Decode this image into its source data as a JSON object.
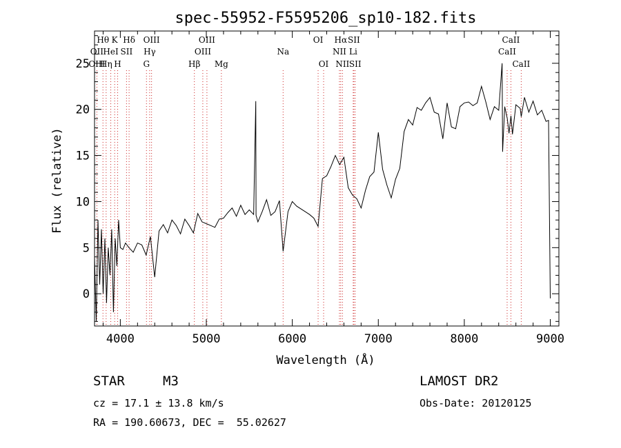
{
  "chart_data": {
    "type": "line",
    "title": "spec-55952-F5595206_sp10-182.fits",
    "xlabel": "Wavelength (Å)",
    "ylabel": "Flux (relative)",
    "xlim": [
      3700,
      9100
    ],
    "ylim": [
      -3.5,
      28.5
    ],
    "xticks": [
      4000,
      5000,
      6000,
      7000,
      8000,
      9000
    ],
    "yticks": [
      0,
      5,
      10,
      15,
      20,
      25
    ],
    "grid": false,
    "series": [
      {
        "x": [
          3700,
          3720,
          3740,
          3760,
          3780,
          3800,
          3820,
          3840,
          3860,
          3880,
          3900,
          3920,
          3940,
          3960,
          3980,
          4000,
          4030,
          4060,
          4100,
          4150,
          4200,
          4250,
          4300,
          4350,
          4400,
          4450,
          4500,
          4550,
          4600,
          4650,
          4700,
          4750,
          4800,
          4850,
          4900,
          4950,
          5000,
          5050,
          5100,
          5150,
          5200,
          5250,
          5300,
          5350,
          5400,
          5450,
          5500,
          5550,
          5575,
          5578,
          5600,
          5650,
          5700,
          5750,
          5800,
          5850,
          5893,
          5950,
          6000,
          6050,
          6100,
          6150,
          6200,
          6250,
          6300,
          6350,
          6400,
          6450,
          6500,
          6550,
          6600,
          6650,
          6700,
          6750,
          6800,
          6850,
          6900,
          6950,
          7000,
          7050,
          7100,
          7150,
          7200,
          7250,
          7300,
          7350,
          7400,
          7450,
          7500,
          7550,
          7600,
          7650,
          7700,
          7750,
          7800,
          7850,
          7900,
          7950,
          8000,
          8050,
          8100,
          8150,
          8200,
          8250,
          8300,
          8350,
          8400,
          8440,
          8445,
          8470,
          8500,
          8520,
          8542,
          8560,
          8600,
          8650,
          8662,
          8700,
          8750,
          8800,
          8850,
          8900,
          8950,
          8980,
          9000
        ],
        "y": [
          4,
          -3,
          8,
          1,
          7,
          0,
          6,
          -1,
          5,
          2,
          7,
          -2,
          6,
          3,
          8,
          5,
          4.8,
          5.5,
          5,
          4.5,
          5.5,
          5.3,
          4.2,
          6.2,
          1.8,
          6.8,
          7.5,
          6.6,
          8,
          7.4,
          6.5,
          8.1,
          7.4,
          6.6,
          8.7,
          7.8,
          7.6,
          7.4,
          7.2,
          8.1,
          8.2,
          8.8,
          9.3,
          8.4,
          9.6,
          8.6,
          9.1,
          8.6,
          20.9,
          8.5,
          7.8,
          8.9,
          10.2,
          8.5,
          8.9,
          10.1,
          4.6,
          8.9,
          10,
          9.5,
          9.2,
          8.9,
          8.6,
          8.2,
          7.3,
          12.5,
          12.8,
          13.8,
          15,
          14,
          14.8,
          11.5,
          10.7,
          10.3,
          9.3,
          11.2,
          12.7,
          13.2,
          17.5,
          13.5,
          11.8,
          10.4,
          12.4,
          13.6,
          17.6,
          18.9,
          18.3,
          20.2,
          19.9,
          20.7,
          21.3,
          19.7,
          19.5,
          16.8,
          20.7,
          18.1,
          17.9,
          20.3,
          20.7,
          20.8,
          20.4,
          20.7,
          22.5,
          20.8,
          18.9,
          20.3,
          19.9,
          25,
          15.4,
          20.3,
          19,
          17.4,
          19.3,
          17.3,
          20.5,
          20.1,
          19.2,
          21.3,
          19.7,
          20.9,
          19.4,
          19.9,
          18.7,
          18.8,
          -0.5
        ]
      }
    ],
    "annotations": {
      "line_labels": [
        {
          "name": "Hθ",
          "wave": 3798,
          "row": 1
        },
        {
          "name": "K",
          "wave": 3934,
          "row": 1
        },
        {
          "name": "Hδ",
          "wave": 4102,
          "row": 1
        },
        {
          "name": "OII",
          "wave": 3727,
          "row": 2
        },
        {
          "name": "HeI",
          "wave": 3889,
          "row": 2
        },
        {
          "name": "SII",
          "wave": 4072,
          "row": 2
        },
        {
          "name": "OIII",
          "wave": 3727,
          "row": 3
        },
        {
          "name": "Hη",
          "wave": 3835,
          "row": 3
        },
        {
          "name": "H",
          "wave": 3969,
          "row": 3
        },
        {
          "name": "OIII",
          "wave": 4363,
          "row": 1
        },
        {
          "name": "Hγ",
          "wave": 4341,
          "row": 2
        },
        {
          "name": "G",
          "wave": 4304,
          "row": 3
        },
        {
          "name": "OIII",
          "wave": 5007,
          "row": 1
        },
        {
          "name": "OIII",
          "wave": 4959,
          "row": 2
        },
        {
          "name": "Hβ",
          "wave": 4861,
          "row": 3
        },
        {
          "name": "Mg",
          "wave": 5175,
          "row": 3
        },
        {
          "name": "Na",
          "wave": 5893,
          "row": 2
        },
        {
          "name": "OI",
          "wave": 6300,
          "row": 1
        },
        {
          "name": "OI",
          "wave": 6364,
          "row": 3
        },
        {
          "name": "Hα",
          "wave": 6563,
          "row": 1
        },
        {
          "name": "SII",
          "wave": 6716,
          "row": 1
        },
        {
          "name": "NII",
          "wave": 6548,
          "row": 2
        },
        {
          "name": "Li",
          "wave": 6708,
          "row": 2
        },
        {
          "name": "NII",
          "wave": 6583,
          "row": 3
        },
        {
          "name": "SII",
          "wave": 6731,
          "row": 3
        },
        {
          "name": "CaII",
          "wave": 8542,
          "row": 1
        },
        {
          "name": "CaII",
          "wave": 8498,
          "row": 2
        },
        {
          "name": "CaII",
          "wave": 8662,
          "row": 3
        }
      ],
      "line_marker_color": "#cc2222"
    }
  },
  "info": {
    "object_type": "STAR",
    "subclass": "M3",
    "survey": "LAMOST DR2",
    "redshift_text": "cz = 17.1 ± 13.8 km/s",
    "obs_date_text": "Obs-Date: 20120125",
    "coords_text": "RA = 190.60673, DEC =  55.02627"
  }
}
